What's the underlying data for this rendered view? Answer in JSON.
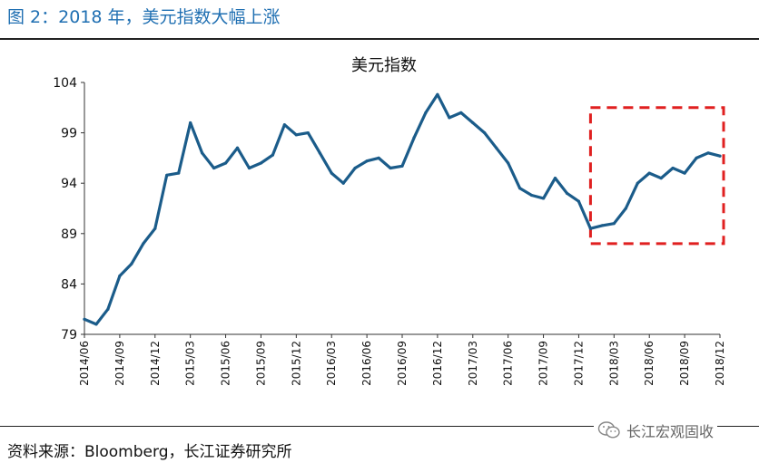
{
  "header": {
    "figure_title": "图 2：2018 年，美元指数大幅上涨"
  },
  "footer": {
    "source": "资料来源：Bloomberg，长江证券研究所",
    "watermark": "长江宏观固收"
  },
  "chart_data": {
    "type": "line",
    "title": "美元指数",
    "xlabel": "",
    "ylabel": "",
    "ylim": [
      79,
      104
    ],
    "yticks": [
      79,
      84,
      89,
      94,
      99,
      104
    ],
    "x_tick_labels": [
      "2014/06",
      "2014/09",
      "2014/12",
      "2015/03",
      "2015/06",
      "2015/09",
      "2015/12",
      "2016/03",
      "2016/06",
      "2016/09",
      "2016/12",
      "2017/03",
      "2017/06",
      "2017/09",
      "2017/12",
      "2018/03",
      "2018/06",
      "2018/09",
      "2018/12"
    ],
    "grid": false,
    "legend": "none",
    "series_color": "#1b5c8a",
    "highlight": {
      "from": "2018/01",
      "to": "2018/12",
      "ymin": 88,
      "ymax": 101.5,
      "color": "#e02020",
      "style": "dashed"
    },
    "series": [
      {
        "x": [
          "2014/06",
          "2014/07",
          "2014/08",
          "2014/09",
          "2014/10",
          "2014/11",
          "2014/12",
          "2015/01",
          "2015/02",
          "2015/03",
          "2015/04",
          "2015/05",
          "2015/06",
          "2015/07",
          "2015/08",
          "2015/09",
          "2015/10",
          "2015/11",
          "2015/12",
          "2016/01",
          "2016/02",
          "2016/03",
          "2016/04",
          "2016/05",
          "2016/06",
          "2016/07",
          "2016/08",
          "2016/09",
          "2016/10",
          "2016/11",
          "2016/12",
          "2017/01",
          "2017/02",
          "2017/03",
          "2017/04",
          "2017/05",
          "2017/06",
          "2017/07",
          "2017/08",
          "2017/09",
          "2017/10",
          "2017/11",
          "2017/12",
          "2018/01",
          "2018/02",
          "2018/03",
          "2018/04",
          "2018/05",
          "2018/06",
          "2018/07",
          "2018/08",
          "2018/09",
          "2018/10",
          "2018/11",
          "2018/12"
        ],
        "values": [
          80.5,
          80.0,
          81.5,
          84.8,
          86.0,
          88.0,
          89.5,
          94.8,
          95.0,
          100.0,
          97.0,
          95.5,
          96.0,
          97.5,
          95.5,
          96.0,
          96.8,
          99.8,
          98.8,
          99.0,
          97.0,
          95.0,
          94.0,
          95.5,
          96.2,
          96.5,
          95.5,
          95.7,
          98.5,
          101.0,
          102.8,
          100.5,
          101.0,
          100.0,
          99.0,
          97.5,
          96.0,
          93.5,
          92.8,
          92.5,
          94.5,
          93.0,
          92.2,
          89.5,
          89.8,
          90.0,
          91.5,
          94.0,
          95.0,
          94.5,
          95.5,
          95.0,
          96.5,
          97.0,
          96.7
        ]
      }
    ]
  }
}
